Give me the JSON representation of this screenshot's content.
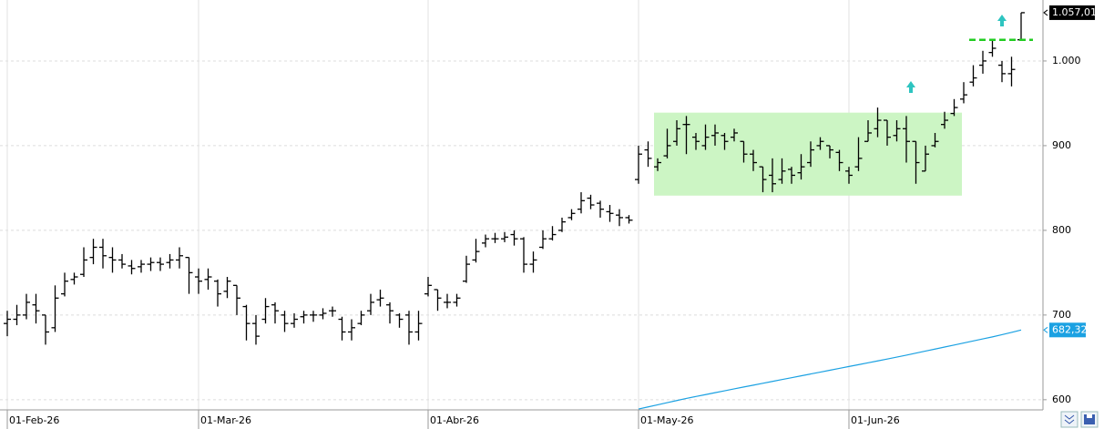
{
  "chart_data": {
    "type": "ohlc",
    "categories": [
      "01-Feb-26",
      null,
      null,
      null,
      null,
      null,
      null,
      null,
      null,
      null,
      null,
      null,
      null,
      null,
      null,
      null,
      null,
      null,
      null,
      null,
      "01-Mar-26",
      null,
      null,
      null,
      null,
      null,
      null,
      null,
      null,
      null,
      null,
      null,
      null,
      null,
      null,
      null,
      null,
      null,
      null,
      null,
      null,
      null,
      null,
      null,
      "01-Abr-26",
      null,
      null,
      null,
      null,
      null,
      null,
      null,
      null,
      null,
      null,
      null,
      null,
      null,
      null,
      null,
      null,
      null,
      null,
      null,
      null,
      null,
      "01-May-26",
      null,
      null,
      null,
      null,
      null,
      null,
      null,
      null,
      null,
      null,
      null,
      null,
      null,
      null,
      null,
      null,
      null,
      null,
      null,
      null,
      null,
      "01-Jun-26",
      null,
      null,
      null,
      null,
      null,
      null,
      null,
      null,
      null,
      null,
      null,
      null,
      null,
      null,
      null,
      null,
      null,
      null
    ],
    "open": [
      690,
      695,
      700,
      712,
      700,
      685,
      725,
      742,
      748,
      768,
      780,
      768,
      765,
      758,
      757,
      760,
      762,
      762,
      765,
      768,
      745,
      742,
      740,
      728,
      735,
      710,
      690,
      695,
      712,
      700,
      690,
      698,
      700,
      700,
      705,
      695,
      680,
      690,
      705,
      718,
      712,
      700,
      700,
      680,
      725,
      730,
      715,
      715,
      740,
      765,
      785,
      790,
      790,
      795,
      790,
      760,
      780,
      790,
      800,
      815,
      825,
      838,
      832,
      822,
      818,
      815,
      860,
      895,
      875,
      888,
      905,
      925,
      910,
      900,
      912,
      912,
      910,
      905,
      890,
      875,
      865,
      860,
      872,
      868,
      880,
      900,
      900,
      892,
      870,
      875,
      905,
      920,
      930,
      912,
      920,
      905,
      870,
      900,
      925,
      938,
      955,
      975,
      995,
      1010,
      995,
      985,
      1025
    ],
    "high": [
      705,
      712,
      725,
      725,
      700,
      735,
      750,
      750,
      780,
      790,
      790,
      780,
      772,
      765,
      765,
      768,
      768,
      772,
      780,
      768,
      755,
      755,
      742,
      745,
      735,
      712,
      700,
      720,
      715,
      705,
      702,
      705,
      705,
      708,
      710,
      698,
      695,
      705,
      725,
      730,
      715,
      702,
      705,
      705,
      745,
      730,
      725,
      725,
      770,
      790,
      795,
      797,
      798,
      800,
      792,
      775,
      800,
      805,
      815,
      825,
      845,
      842,
      835,
      830,
      825,
      818,
      900,
      905,
      885,
      920,
      930,
      935,
      915,
      925,
      925,
      915,
      920,
      905,
      895,
      875,
      885,
      885,
      875,
      890,
      905,
      910,
      900,
      895,
      875,
      910,
      930,
      945,
      930,
      930,
      935,
      905,
      900,
      915,
      940,
      955,
      975,
      995,
      1012,
      1025,
      1000,
      1005,
      1057.01
    ],
    "low": [
      675,
      688,
      695,
      690,
      665,
      680,
      722,
      736,
      745,
      760,
      755,
      750,
      755,
      748,
      750,
      752,
      752,
      755,
      755,
      725,
      725,
      730,
      710,
      720,
      700,
      670,
      665,
      690,
      690,
      680,
      685,
      690,
      692,
      695,
      698,
      670,
      670,
      688,
      700,
      710,
      690,
      685,
      665,
      670,
      722,
      705,
      708,
      710,
      738,
      762,
      780,
      785,
      786,
      782,
      750,
      750,
      778,
      788,
      798,
      812,
      820,
      825,
      815,
      810,
      805,
      808,
      855,
      875,
      870,
      885,
      900,
      890,
      895,
      895,
      900,
      895,
      905,
      880,
      870,
      845,
      845,
      855,
      855,
      860,
      875,
      895,
      885,
      870,
      855,
      870,
      905,
      910,
      900,
      905,
      880,
      855,
      870,
      898,
      920,
      935,
      950,
      970,
      985,
      1005,
      975,
      970,
      1025
    ],
    "close": [
      695,
      700,
      715,
      705,
      680,
      720,
      740,
      745,
      765,
      780,
      770,
      765,
      760,
      755,
      760,
      762,
      760,
      765,
      770,
      750,
      740,
      745,
      725,
      740,
      720,
      690,
      675,
      710,
      705,
      690,
      695,
      700,
      700,
      702,
      705,
      680,
      685,
      700,
      715,
      720,
      705,
      695,
      680,
      690,
      735,
      720,
      715,
      720,
      760,
      775,
      790,
      790,
      792,
      790,
      760,
      765,
      790,
      795,
      810,
      820,
      835,
      830,
      825,
      820,
      815,
      812,
      890,
      885,
      880,
      900,
      920,
      925,
      905,
      910,
      915,
      905,
      915,
      890,
      880,
      860,
      855,
      870,
      865,
      875,
      895,
      905,
      895,
      880,
      865,
      885,
      915,
      930,
      910,
      920,
      905,
      880,
      890,
      905,
      930,
      945,
      960,
      980,
      1000,
      1015,
      985,
      990,
      1057.01
    ],
    "color": "#000000",
    "ylim": [
      588,
      1072
    ],
    "yticks": [
      600,
      700,
      800,
      900,
      {
        "value": 1000,
        "label": "1.000"
      }
    ],
    "grid": true,
    "last_price": {
      "value": 1057.01,
      "label": "1.057,01"
    },
    "moving_average": {
      "color": "#1ba1e2",
      "values": [
        null,
        null,
        null,
        null,
        null,
        null,
        null,
        null,
        null,
        null,
        null,
        null,
        null,
        null,
        null,
        null,
        null,
        null,
        null,
        null,
        null,
        null,
        null,
        null,
        null,
        null,
        null,
        null,
        null,
        null,
        null,
        null,
        null,
        null,
        null,
        null,
        null,
        null,
        null,
        null,
        null,
        null,
        null,
        null,
        null,
        null,
        null,
        null,
        null,
        null,
        null,
        null,
        null,
        null,
        null,
        null,
        null,
        null,
        null,
        null,
        null,
        null,
        null,
        null,
        null,
        null,
        589,
        591.5,
        594,
        596.5,
        599,
        601.5,
        603.8,
        606,
        608.3,
        610.5,
        612.8,
        615,
        617.2,
        619.4,
        621.6,
        623.8,
        626,
        628.2,
        630.4,
        632.6,
        634.8,
        637,
        639.2,
        641.4,
        643.6,
        645.8,
        648,
        650.3,
        652.6,
        655,
        657.4,
        659.8,
        662.2,
        664.6,
        667,
        669.4,
        671.8,
        674.2,
        676.8,
        679.5,
        682.32
      ],
      "last": {
        "value": 682.32,
        "label": "682,32"
      }
    },
    "zone": {
      "low": 841,
      "high": 939,
      "color": "#ccf5c4"
    },
    "resistance": {
      "value": 1025,
      "color": "#22cc22"
    }
  }
}
